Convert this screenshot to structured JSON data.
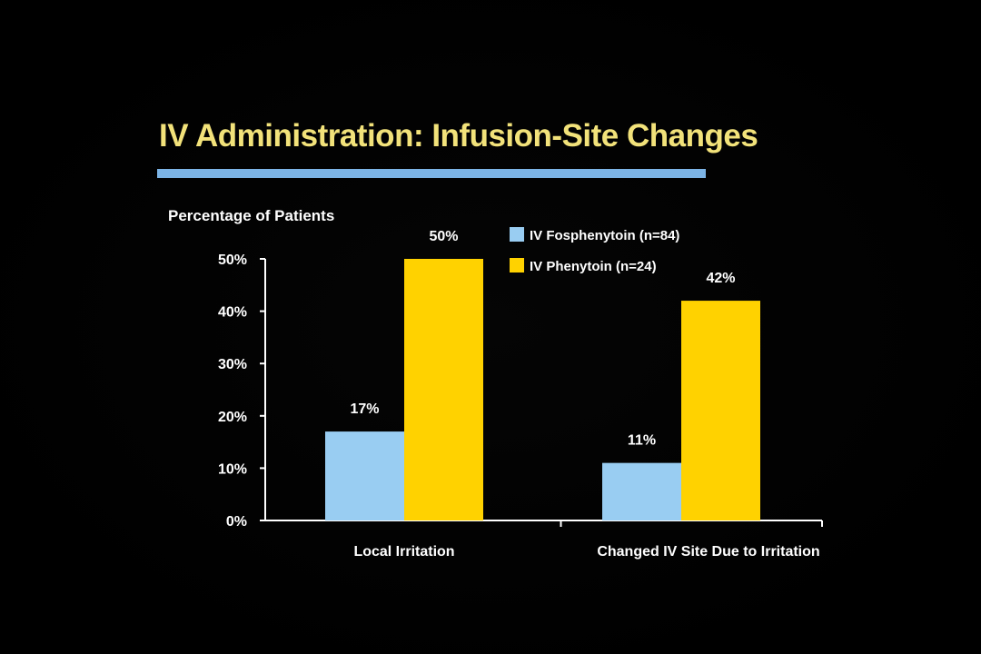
{
  "slide": {
    "title": "IV Administration: Infusion-Site Changes"
  },
  "colors": {
    "background": "#000000",
    "title": "#f2e27a",
    "rule": "#7cb4e6",
    "axis_text": "#ffffff"
  },
  "chart_data": {
    "type": "bar",
    "ylabel": "Percentage of Patients",
    "xlabel": "",
    "categories": [
      "Local Irritation",
      "Changed IV Site Due to Irritation"
    ],
    "series": [
      {
        "name": "IV Fosphenytoin (n=84)",
        "values": [
          17,
          11
        ],
        "color": "#99cdf2"
      },
      {
        "name": "IV Phenytoin (n=24)",
        "values": [
          50,
          42
        ],
        "color": "#ffd200"
      }
    ],
    "data_labels": [
      [
        "17%",
        "11%"
      ],
      [
        "50%",
        "42%"
      ]
    ],
    "ylim": [
      0,
      50
    ],
    "yticks": [
      0,
      10,
      20,
      30,
      40,
      50
    ],
    "ytick_labels": [
      "0%",
      "10%",
      "20%",
      "30%",
      "40%",
      "50%"
    ],
    "grid": false,
    "legend_position": "top-right"
  }
}
